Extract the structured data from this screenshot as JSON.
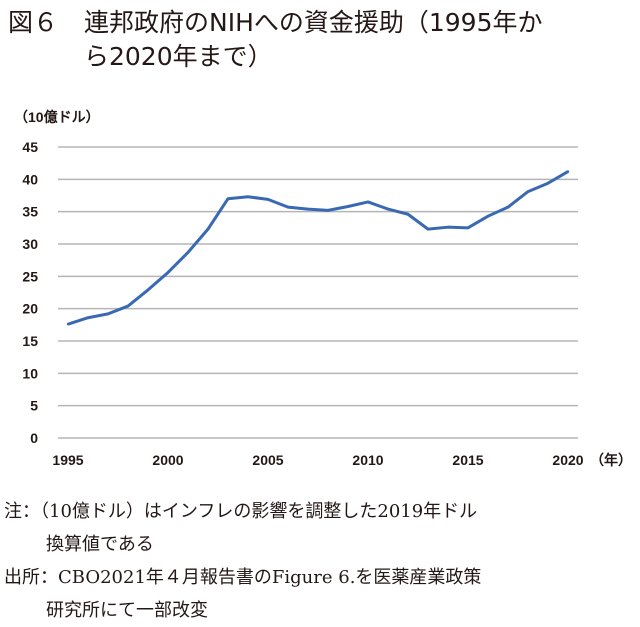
{
  "figure": {
    "label": "図６",
    "title_line1": "連邦政府のNIHへの資金援助（1995年か",
    "title_line2": "ら2020年まで）"
  },
  "chart_data": {
    "type": "line",
    "title": "",
    "ylabel": "（10億ドル）",
    "xlabel": "（年）",
    "ylim": [
      0,
      45
    ],
    "xlim": [
      1995,
      2020
    ],
    "yticks": [
      "0",
      "5",
      "10",
      "15",
      "20",
      "25",
      "30",
      "35",
      "40",
      "45"
    ],
    "xticks": [
      "1995",
      "2000",
      "2005",
      "2010",
      "2015",
      "2020"
    ],
    "grid": true,
    "color": "#3a69b3",
    "x": [
      1995,
      1996,
      1997,
      1998,
      1999,
      2000,
      2001,
      2002,
      2003,
      2004,
      2005,
      2006,
      2007,
      2008,
      2009,
      2010,
      2011,
      2012,
      2013,
      2014,
      2015,
      2016,
      2017,
      2018,
      2019,
      2020
    ],
    "values": [
      17.6,
      18.6,
      19.2,
      20.4,
      22.9,
      25.6,
      28.7,
      32.3,
      37.0,
      37.3,
      36.9,
      35.7,
      35.4,
      35.2,
      35.8,
      36.5,
      35.4,
      34.6,
      32.3,
      32.6,
      32.5,
      34.3,
      35.7,
      38.1,
      39.4,
      41.2
    ]
  },
  "notes": {
    "note_line1": "注：（10億ドル）はインフレの影響を調整した2019年ドル",
    "note_line2": "換算値である",
    "source_line1": "出所：CBO2021年４月報告書のFigure 6.を医薬産業政策",
    "source_line2": "研究所にて一部改変"
  }
}
